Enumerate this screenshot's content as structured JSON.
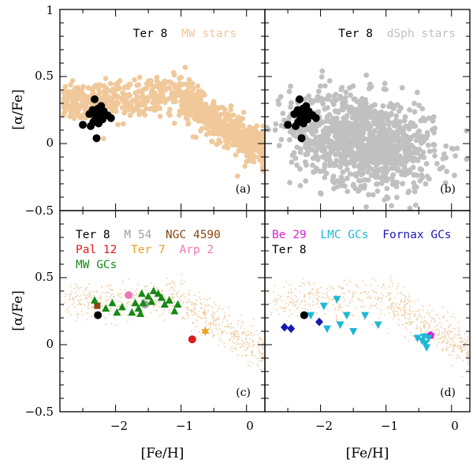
{
  "figure": {
    "xlabel": "[Fe/H]",
    "ylabel": "[α/Fe]",
    "x_ticks": [
      "−2",
      "−1",
      "0"
    ],
    "y_ticks_top": [
      "1",
      "0.5",
      "0",
      "−0.5"
    ],
    "y_ticks_bottom": [
      "0.5",
      "0",
      "−0.5"
    ]
  },
  "colors": {
    "ter8": "#000000",
    "mw_stars": "#f0c89a",
    "dsph_stars": "#c0c0c0",
    "m54": "#a0a0a0",
    "ngc4590": "#8b4513",
    "pal12": "#dd1c1c",
    "ter7": "#f0a020",
    "arp2": "#f077b4",
    "mw_gcs": "#158a15",
    "be29": "#e020d0",
    "lmc_gcs": "#1cb8d4",
    "fornax_gcs": "#1818b0"
  },
  "chart_data": [
    {
      "panel": "a",
      "type": "scatter",
      "tag": "(a)",
      "xlim": [
        -2.85,
        0.28
      ],
      "ylim": [
        -0.5,
        1.0
      ],
      "legend": [
        {
          "label": "Ter 8",
          "color": "#000000"
        },
        {
          "label": "MW stars",
          "color": "#f0c89a"
        }
      ],
      "background_series": {
        "name": "MW stars",
        "color": "#f0c89a",
        "description": "field star cloud"
      },
      "series": [
        {
          "name": "Ter 8",
          "color": "#000000",
          "marker": "circle",
          "points": [
            [
              -2.32,
              0.33
            ],
            [
              -2.27,
              0.26
            ],
            [
              -2.22,
              0.28
            ],
            [
              -2.35,
              0.25
            ],
            [
              -2.3,
              0.22
            ],
            [
              -2.24,
              0.21
            ],
            [
              -2.12,
              0.21
            ],
            [
              -2.4,
              0.22
            ],
            [
              -2.2,
              0.18
            ],
            [
              -2.31,
              0.18
            ],
            [
              -2.26,
              0.15
            ],
            [
              -2.34,
              0.16
            ],
            [
              -2.07,
              0.19
            ],
            [
              -2.5,
              0.14
            ],
            [
              -2.38,
              0.13
            ],
            [
              -2.29,
              0.04
            ],
            [
              -2.23,
              0.26
            ],
            [
              -2.18,
              0.24
            ]
          ]
        }
      ]
    },
    {
      "panel": "b",
      "type": "scatter",
      "tag": "(b)",
      "xlim": [
        -2.85,
        0.28
      ],
      "ylim": [
        -0.5,
        1.0
      ],
      "legend": [
        {
          "label": "Ter 8",
          "color": "#000000"
        },
        {
          "label": "dSph stars",
          "color": "#c0c0c0"
        }
      ],
      "background_series": {
        "name": "dSph stars",
        "color": "#c0c0c0",
        "description": "dwarf spheroidal star cloud"
      },
      "series": [
        {
          "name": "Ter 8",
          "color": "#000000",
          "marker": "circle",
          "points": [
            [
              -2.32,
              0.33
            ],
            [
              -2.27,
              0.26
            ],
            [
              -2.22,
              0.28
            ],
            [
              -2.35,
              0.25
            ],
            [
              -2.3,
              0.22
            ],
            [
              -2.24,
              0.21
            ],
            [
              -2.12,
              0.21
            ],
            [
              -2.4,
              0.22
            ],
            [
              -2.2,
              0.18
            ],
            [
              -2.31,
              0.18
            ],
            [
              -2.26,
              0.15
            ],
            [
              -2.34,
              0.16
            ],
            [
              -2.07,
              0.19
            ],
            [
              -2.5,
              0.14
            ],
            [
              -2.38,
              0.13
            ],
            [
              -2.29,
              0.04
            ],
            [
              -2.23,
              0.26
            ],
            [
              -2.18,
              0.24
            ]
          ]
        }
      ]
    },
    {
      "panel": "c",
      "type": "scatter",
      "tag": "(c)",
      "xlim": [
        -2.85,
        0.28
      ],
      "ylim": [
        -0.5,
        1.0
      ],
      "legend": [
        {
          "label": "Ter 8",
          "color": "#000000"
        },
        {
          "label": "M 54",
          "color": "#a0a0a0"
        },
        {
          "label": "NGC 4590",
          "color": "#8b4513"
        },
        {
          "label": "Pal 12",
          "color": "#dd1c1c"
        },
        {
          "label": "Ter 7",
          "color": "#f0a020"
        },
        {
          "label": "Arp 2",
          "color": "#f077b4"
        },
        {
          "label": "MW GCs",
          "color": "#158a15"
        }
      ],
      "background_series": {
        "name": "MW stars",
        "color": "#f0c89a",
        "description": "small dots"
      },
      "series": [
        {
          "name": "Ter 8",
          "color": "#000000",
          "marker": "circle",
          "points": [
            [
              -2.27,
              0.22
            ]
          ]
        },
        {
          "name": "M 54",
          "color": "#a0a0a0",
          "marker": "circle",
          "points": [
            [
              -1.55,
              0.3
            ]
          ]
        },
        {
          "name": "NGC 4590",
          "color": "#8b4513",
          "marker": "square",
          "points": [
            [
              -2.28,
              0.29
            ]
          ]
        },
        {
          "name": "Pal 12",
          "color": "#dd1c1c",
          "marker": "circle",
          "points": [
            [
              -0.83,
              0.04
            ]
          ]
        },
        {
          "name": "Ter 7",
          "color": "#f0a020",
          "marker": "star",
          "points": [
            [
              -0.63,
              0.1
            ]
          ]
        },
        {
          "name": "Arp 2",
          "color": "#f077b4",
          "marker": "circle",
          "points": [
            [
              -1.8,
              0.37
            ]
          ]
        },
        {
          "name": "MW GCs",
          "color": "#158a15",
          "marker": "triangle-up",
          "points": [
            [
              -2.32,
              0.33
            ],
            [
              -2.15,
              0.27
            ],
            [
              -2.05,
              0.31
            ],
            [
              -1.9,
              0.28
            ],
            [
              -1.7,
              0.31
            ],
            [
              -1.65,
              0.27
            ],
            [
              -1.62,
              0.23
            ],
            [
              -1.5,
              0.36
            ],
            [
              -1.42,
              0.4
            ],
            [
              -1.35,
              0.38
            ],
            [
              -1.3,
              0.35
            ],
            [
              -1.25,
              0.3
            ],
            [
              -1.18,
              0.33
            ],
            [
              -1.1,
              0.25
            ],
            [
              -1.05,
              0.3
            ],
            [
              -1.6,
              0.38
            ],
            [
              -1.45,
              0.32
            ],
            [
              -1.98,
              0.24
            ],
            [
              -1.75,
              0.24
            ],
            [
              -1.58,
              0.31
            ]
          ]
        }
      ]
    },
    {
      "panel": "d",
      "type": "scatter",
      "tag": "(d)",
      "xlim": [
        -2.85,
        0.28
      ],
      "ylim": [
        -0.5,
        1.0
      ],
      "legend": [
        {
          "label": "Be 29",
          "color": "#e020d0"
        },
        {
          "label": "LMC GCs",
          "color": "#1cb8d4"
        },
        {
          "label": "Fornax GCs",
          "color": "#1818b0"
        },
        {
          "label": "Ter 8",
          "color": "#000000"
        }
      ],
      "background_series": {
        "name": "MW stars",
        "color": "#f0c89a",
        "description": "small dots"
      },
      "series": [
        {
          "name": "Be 29",
          "color": "#e020d0",
          "marker": "pentagon",
          "points": [
            [
              -0.32,
              0.07
            ]
          ]
        },
        {
          "name": "LMC GCs",
          "color": "#1cb8d4",
          "marker": "triangle-down",
          "points": [
            [
              -2.15,
              0.22
            ],
            [
              -1.95,
              0.29
            ],
            [
              -1.75,
              0.34
            ],
            [
              -1.6,
              0.22
            ],
            [
              -1.32,
              0.22
            ],
            [
              -1.12,
              0.15
            ],
            [
              -1.9,
              0.12
            ],
            [
              -1.5,
              0.1
            ],
            [
              -0.52,
              0.05
            ],
            [
              -0.45,
              0.03
            ],
            [
              -0.4,
              0.01
            ],
            [
              -0.38,
              -0.02
            ],
            [
              -0.42,
              0.06
            ],
            [
              -0.35,
              0.05
            ],
            [
              -1.7,
              0.15
            ]
          ]
        },
        {
          "name": "Fornax GCs",
          "color": "#1818b0",
          "marker": "diamond",
          "points": [
            [
              -2.55,
              0.13
            ],
            [
              -2.45,
              0.12
            ],
            [
              -2.02,
              0.17
            ]
          ]
        },
        {
          "name": "Ter 8",
          "color": "#000000",
          "marker": "circle",
          "points": [
            [
              -2.25,
              0.22
            ]
          ]
        }
      ]
    }
  ]
}
